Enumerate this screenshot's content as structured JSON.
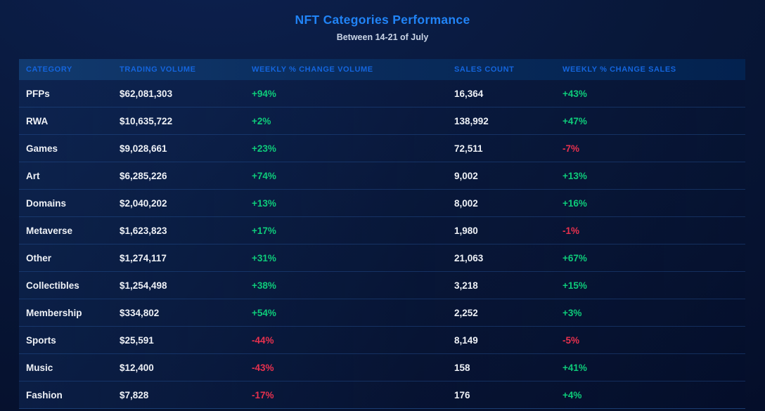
{
  "page": {
    "title": "NFT Categories Performance",
    "subtitle": "Between 14-21 of July"
  },
  "colors": {
    "background": "#081738",
    "header_background": "#0a2c5c",
    "title_accent": "#2184f7",
    "header_text": "#1465dd",
    "body_text": "#eef1f6",
    "positive": "#0ecb7a",
    "negative": "#e8314e"
  },
  "table": {
    "columns": [
      "CATEGORY",
      "TRADING VOLUME",
      "WEEKLY % CHANGE VOLUME",
      "SALES COUNT",
      "WEEKLY % CHANGE SALES"
    ],
    "rows": [
      {
        "category": "PFPs",
        "trading_volume": "$62,081,303",
        "weekly_change_volume": "+94%",
        "sales_count": "16,364",
        "weekly_change_sales": "+43%"
      },
      {
        "category": "RWA",
        "trading_volume": "$10,635,722",
        "weekly_change_volume": "+2%",
        "sales_count": "138,992",
        "weekly_change_sales": "+47%"
      },
      {
        "category": "Games",
        "trading_volume": "$9,028,661",
        "weekly_change_volume": "+23%",
        "sales_count": "72,511",
        "weekly_change_sales": "-7%"
      },
      {
        "category": "Art",
        "trading_volume": "$6,285,226",
        "weekly_change_volume": "+74%",
        "sales_count": "9,002",
        "weekly_change_sales": "+13%"
      },
      {
        "category": "Domains",
        "trading_volume": "$2,040,202",
        "weekly_change_volume": "+13%",
        "sales_count": "8,002",
        "weekly_change_sales": "+16%"
      },
      {
        "category": "Metaverse",
        "trading_volume": "$1,623,823",
        "weekly_change_volume": "+17%",
        "sales_count": "1,980",
        "weekly_change_sales": "-1%"
      },
      {
        "category": "Other",
        "trading_volume": "$1,274,117",
        "weekly_change_volume": "+31%",
        "sales_count": "21,063",
        "weekly_change_sales": "+67%"
      },
      {
        "category": "Collectibles",
        "trading_volume": "$1,254,498",
        "weekly_change_volume": "+38%",
        "sales_count": "3,218",
        "weekly_change_sales": "+15%"
      },
      {
        "category": "Membership",
        "trading_volume": "$334,802",
        "weekly_change_volume": "+54%",
        "sales_count": "2,252",
        "weekly_change_sales": "+3%"
      },
      {
        "category": "Sports",
        "trading_volume": "$25,591",
        "weekly_change_volume": "-44%",
        "sales_count": "8,149",
        "weekly_change_sales": "-5%"
      },
      {
        "category": "Music",
        "trading_volume": "$12,400",
        "weekly_change_volume": "-43%",
        "sales_count": "158",
        "weekly_change_sales": "+41%"
      },
      {
        "category": "Fashion",
        "trading_volume": "$7,828",
        "weekly_change_volume": "-17%",
        "sales_count": "176",
        "weekly_change_sales": "+4%"
      }
    ]
  },
  "chart_data": {
    "type": "table",
    "title": "NFT Categories Performance",
    "subtitle": "Between 14-21 of July",
    "columns": [
      "Category",
      "Trading Volume ($)",
      "Weekly % Change Volume",
      "Sales Count",
      "Weekly % Change Sales"
    ],
    "categories": [
      "PFPs",
      "RWA",
      "Games",
      "Art",
      "Domains",
      "Metaverse",
      "Other",
      "Collectibles",
      "Membership",
      "Sports",
      "Music",
      "Fashion"
    ],
    "series": [
      {
        "name": "Trading Volume ($)",
        "values": [
          62081303,
          10635722,
          9028661,
          6285226,
          2040202,
          1623823,
          1274117,
          1254498,
          334802,
          25591,
          12400,
          7828
        ]
      },
      {
        "name": "Weekly % Change Volume",
        "values": [
          94,
          2,
          23,
          74,
          13,
          17,
          31,
          38,
          54,
          -44,
          -43,
          -17
        ]
      },
      {
        "name": "Sales Count",
        "values": [
          16364,
          138992,
          72511,
          9002,
          8002,
          1980,
          21063,
          3218,
          2252,
          8149,
          158,
          176
        ]
      },
      {
        "name": "Weekly % Change Sales",
        "values": [
          43,
          47,
          -7,
          13,
          16,
          -1,
          67,
          15,
          3,
          -5,
          41,
          4
        ]
      }
    ]
  }
}
